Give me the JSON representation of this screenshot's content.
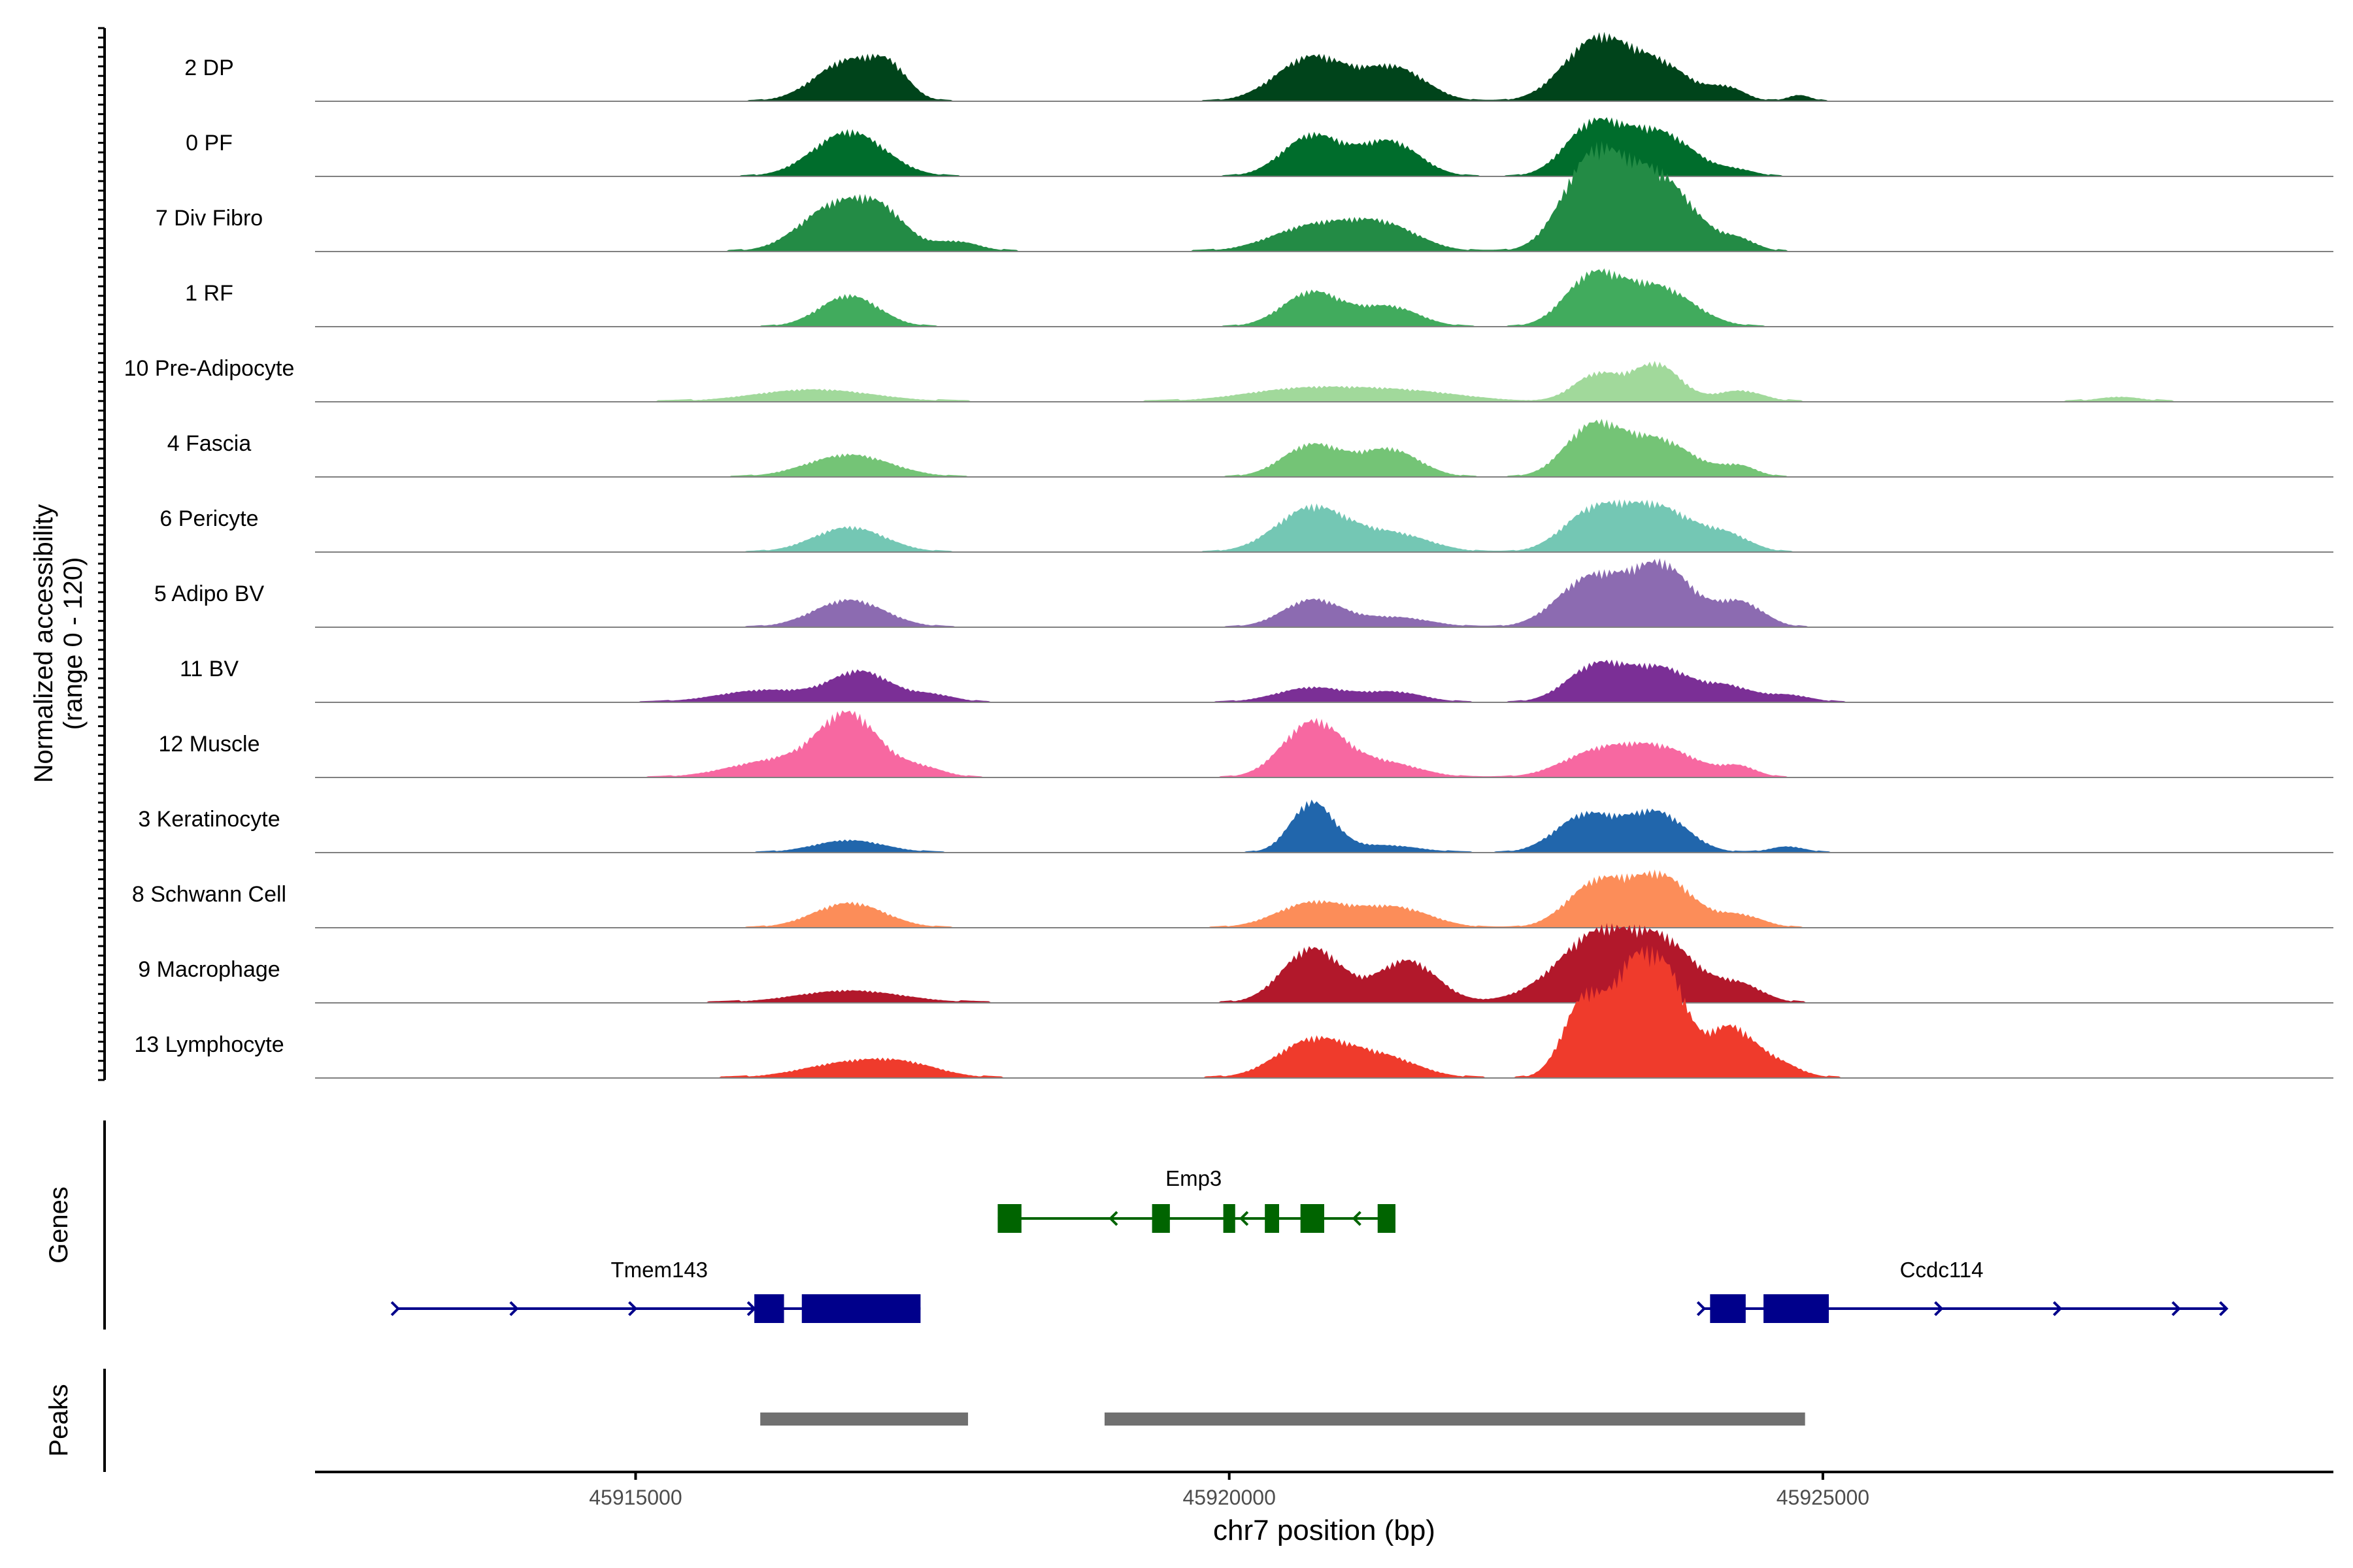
{
  "chart_data": {
    "type": "area",
    "title": "",
    "ylabel_line1": "Normalized accessibility",
    "ylabel_line2": "(range 0 - 120)",
    "ylim": [
      0,
      120
    ],
    "xlabel": "chr7 position (bp)",
    "xlim": [
      45912300,
      45929300
    ],
    "x_ticks": [
      45915000,
      45920000,
      45925000
    ],
    "x_tick_labels": [
      "45915000",
      "45920000",
      "45925000"
    ],
    "gene_panel_label": "Genes",
    "peak_panel_label": "Peaks",
    "tracks": [
      {
        "name": "2 DP",
        "color": "#00441b",
        "baseline": 2,
        "peaks": [
          [
            45916800,
            33,
            280
          ],
          [
            45917150,
            18,
            150
          ],
          [
            45920700,
            36,
            300
          ],
          [
            45921400,
            26,
            260
          ],
          [
            45923100,
            50,
            280
          ],
          [
            45923650,
            26,
            250
          ],
          [
            45924200,
            10,
            150
          ],
          [
            45924800,
            5,
            100
          ]
        ]
      },
      {
        "name": "0 PF",
        "color": "#006d2c",
        "baseline": 2,
        "peaks": [
          [
            45916800,
            36,
            300
          ],
          [
            45920700,
            33,
            250
          ],
          [
            45921350,
            28,
            250
          ],
          [
            45923050,
            38,
            230
          ],
          [
            45923600,
            36,
            300
          ],
          [
            45924300,
            4,
            150
          ]
        ]
      },
      {
        "name": "7 Div Fibro",
        "color": "#238b45",
        "baseline": 3,
        "peaks": [
          [
            45916700,
            38,
            300
          ],
          [
            45917100,
            22,
            200
          ],
          [
            45917700,
            8,
            200
          ],
          [
            45920700,
            20,
            350
          ],
          [
            45921300,
            20,
            300
          ],
          [
            45923050,
            70,
            250
          ],
          [
            45923600,
            60,
            300
          ],
          [
            45924300,
            8,
            150
          ]
        ]
      },
      {
        "name": "1 RF",
        "color": "#41ab5d",
        "baseline": 2,
        "peaks": [
          [
            45916800,
            25,
            250
          ],
          [
            45920700,
            28,
            250
          ],
          [
            45921350,
            16,
            250
          ],
          [
            45923050,
            38,
            230
          ],
          [
            45923600,
            32,
            300
          ]
        ]
      },
      {
        "name": "10 Pre-Adipocyte",
        "color": "#a1d99b",
        "baseline": 3,
        "peaks": [
          [
            45916500,
            10,
            500
          ],
          [
            45920600,
            10,
            500
          ],
          [
            45921500,
            8,
            500
          ],
          [
            45923100,
            22,
            200
          ],
          [
            45923600,
            30,
            200
          ],
          [
            45924300,
            9,
            200
          ],
          [
            45927500,
            4,
            200
          ]
        ]
      },
      {
        "name": "4 Fascia",
        "color": "#74c476",
        "baseline": 2,
        "peaks": [
          [
            45916800,
            18,
            350
          ],
          [
            45920700,
            26,
            250
          ],
          [
            45921350,
            22,
            250
          ],
          [
            45923050,
            38,
            230
          ],
          [
            45923600,
            30,
            300
          ],
          [
            45924300,
            8,
            150
          ]
        ]
      },
      {
        "name": "6 Pericyte",
        "color": "#74c7b4",
        "baseline": 2,
        "peaks": [
          [
            45916800,
            20,
            300
          ],
          [
            45920700,
            36,
            300
          ],
          [
            45921400,
            14,
            300
          ],
          [
            45923050,
            30,
            250
          ],
          [
            45923600,
            36,
            300
          ],
          [
            45924200,
            12,
            200
          ]
        ]
      },
      {
        "name": "5 Adipo BV",
        "color": "#8c6bb1",
        "baseline": 2,
        "peaks": [
          [
            45916800,
            22,
            300
          ],
          [
            45920700,
            22,
            250
          ],
          [
            45921400,
            8,
            300
          ],
          [
            45923050,
            40,
            280
          ],
          [
            45923650,
            48,
            250
          ],
          [
            45924300,
            20,
            200
          ]
        ]
      },
      {
        "name": "11 BV",
        "color": "#7b2f96",
        "baseline": 2,
        "peaks": [
          [
            45916100,
            10,
            400
          ],
          [
            45916900,
            24,
            250
          ],
          [
            45917500,
            6,
            200
          ],
          [
            45920700,
            12,
            300
          ],
          [
            45921400,
            8,
            250
          ],
          [
            45923100,
            30,
            250
          ],
          [
            45923650,
            26,
            250
          ],
          [
            45924200,
            12,
            200
          ],
          [
            45924700,
            6,
            200
          ]
        ]
      },
      {
        "name": "12 Muscle",
        "color": "#f768a1",
        "baseline": 2,
        "peaks": [
          [
            45916200,
            14,
            400
          ],
          [
            45916800,
            48,
            250
          ],
          [
            45917400,
            8,
            200
          ],
          [
            45920700,
            44,
            250
          ],
          [
            45921300,
            12,
            300
          ],
          [
            45923100,
            20,
            300
          ],
          [
            45923650,
            22,
            300
          ],
          [
            45924300,
            8,
            150
          ]
        ]
      },
      {
        "name": "3 Keratinocyte",
        "color": "#2166ac",
        "baseline": 2,
        "peaks": [
          [
            45916800,
            10,
            300
          ],
          [
            45920700,
            40,
            180
          ],
          [
            45921300,
            6,
            300
          ],
          [
            45923000,
            30,
            250
          ],
          [
            45923600,
            32,
            250
          ],
          [
            45924700,
            5,
            150
          ]
        ]
      },
      {
        "name": "8 Schwann Cell",
        "color": "#fc8d59",
        "baseline": 2,
        "peaks": [
          [
            45916800,
            20,
            300
          ],
          [
            45920700,
            20,
            300
          ],
          [
            45921400,
            16,
            300
          ],
          [
            45923100,
            36,
            250
          ],
          [
            45923650,
            40,
            250
          ],
          [
            45924300,
            10,
            200
          ]
        ]
      },
      {
        "name": "9 Macrophage",
        "color": "#b2182b",
        "baseline": 3,
        "peaks": [
          [
            45916800,
            10,
            450
          ],
          [
            45920700,
            44,
            250
          ],
          [
            45921500,
            34,
            250
          ],
          [
            45922700,
            10,
            300
          ],
          [
            45923100,
            48,
            280
          ],
          [
            45923650,
            48,
            280
          ],
          [
            45924300,
            14,
            200
          ]
        ]
      },
      {
        "name": "13 Lymphocyte",
        "color": "#ef3b2c",
        "baseline": 3,
        "peaks": [
          [
            45916800,
            12,
            400
          ],
          [
            45917300,
            8,
            300
          ],
          [
            45920700,
            30,
            300
          ],
          [
            45921300,
            16,
            300
          ],
          [
            45923000,
            65,
            180
          ],
          [
            45923400,
            80,
            160
          ],
          [
            45923700,
            75,
            160
          ],
          [
            45924200,
            40,
            200
          ],
          [
            45924600,
            12,
            200
          ]
        ]
      }
    ],
    "genes": [
      {
        "name": "Emp3",
        "strand": "-",
        "start": 45918050,
        "end": 45921400,
        "exons": [
          [
            45918050,
            45918250
          ],
          [
            45919350,
            45919500
          ],
          [
            45919950,
            45920050
          ],
          [
            45920300,
            45920420
          ],
          [
            45920600,
            45920800
          ],
          [
            45921250,
            45921400
          ]
        ],
        "arrows": [
          45919000,
          45920100,
          45921050
        ]
      },
      {
        "name": "Tmem143",
        "strand": "+",
        "start": 45913000,
        "end": 45917400,
        "exons": [
          [
            45916000,
            45916250
          ],
          [
            45916400,
            45917400
          ]
        ],
        "arrows": [
          45913000,
          45914000,
          45915000,
          45916000
        ]
      },
      {
        "name": "Ccdc114",
        "strand": "+",
        "start": 45924000,
        "end": 45928400,
        "exons": [
          [
            45924050,
            45924350
          ],
          [
            45924500,
            45925050
          ]
        ],
        "arrows": [
          45924000,
          45926000,
          45927000,
          45928000,
          45928400
        ]
      }
    ],
    "peaks": [
      [
        45916050,
        45917800
      ],
      [
        45918950,
        45924850
      ]
    ]
  }
}
